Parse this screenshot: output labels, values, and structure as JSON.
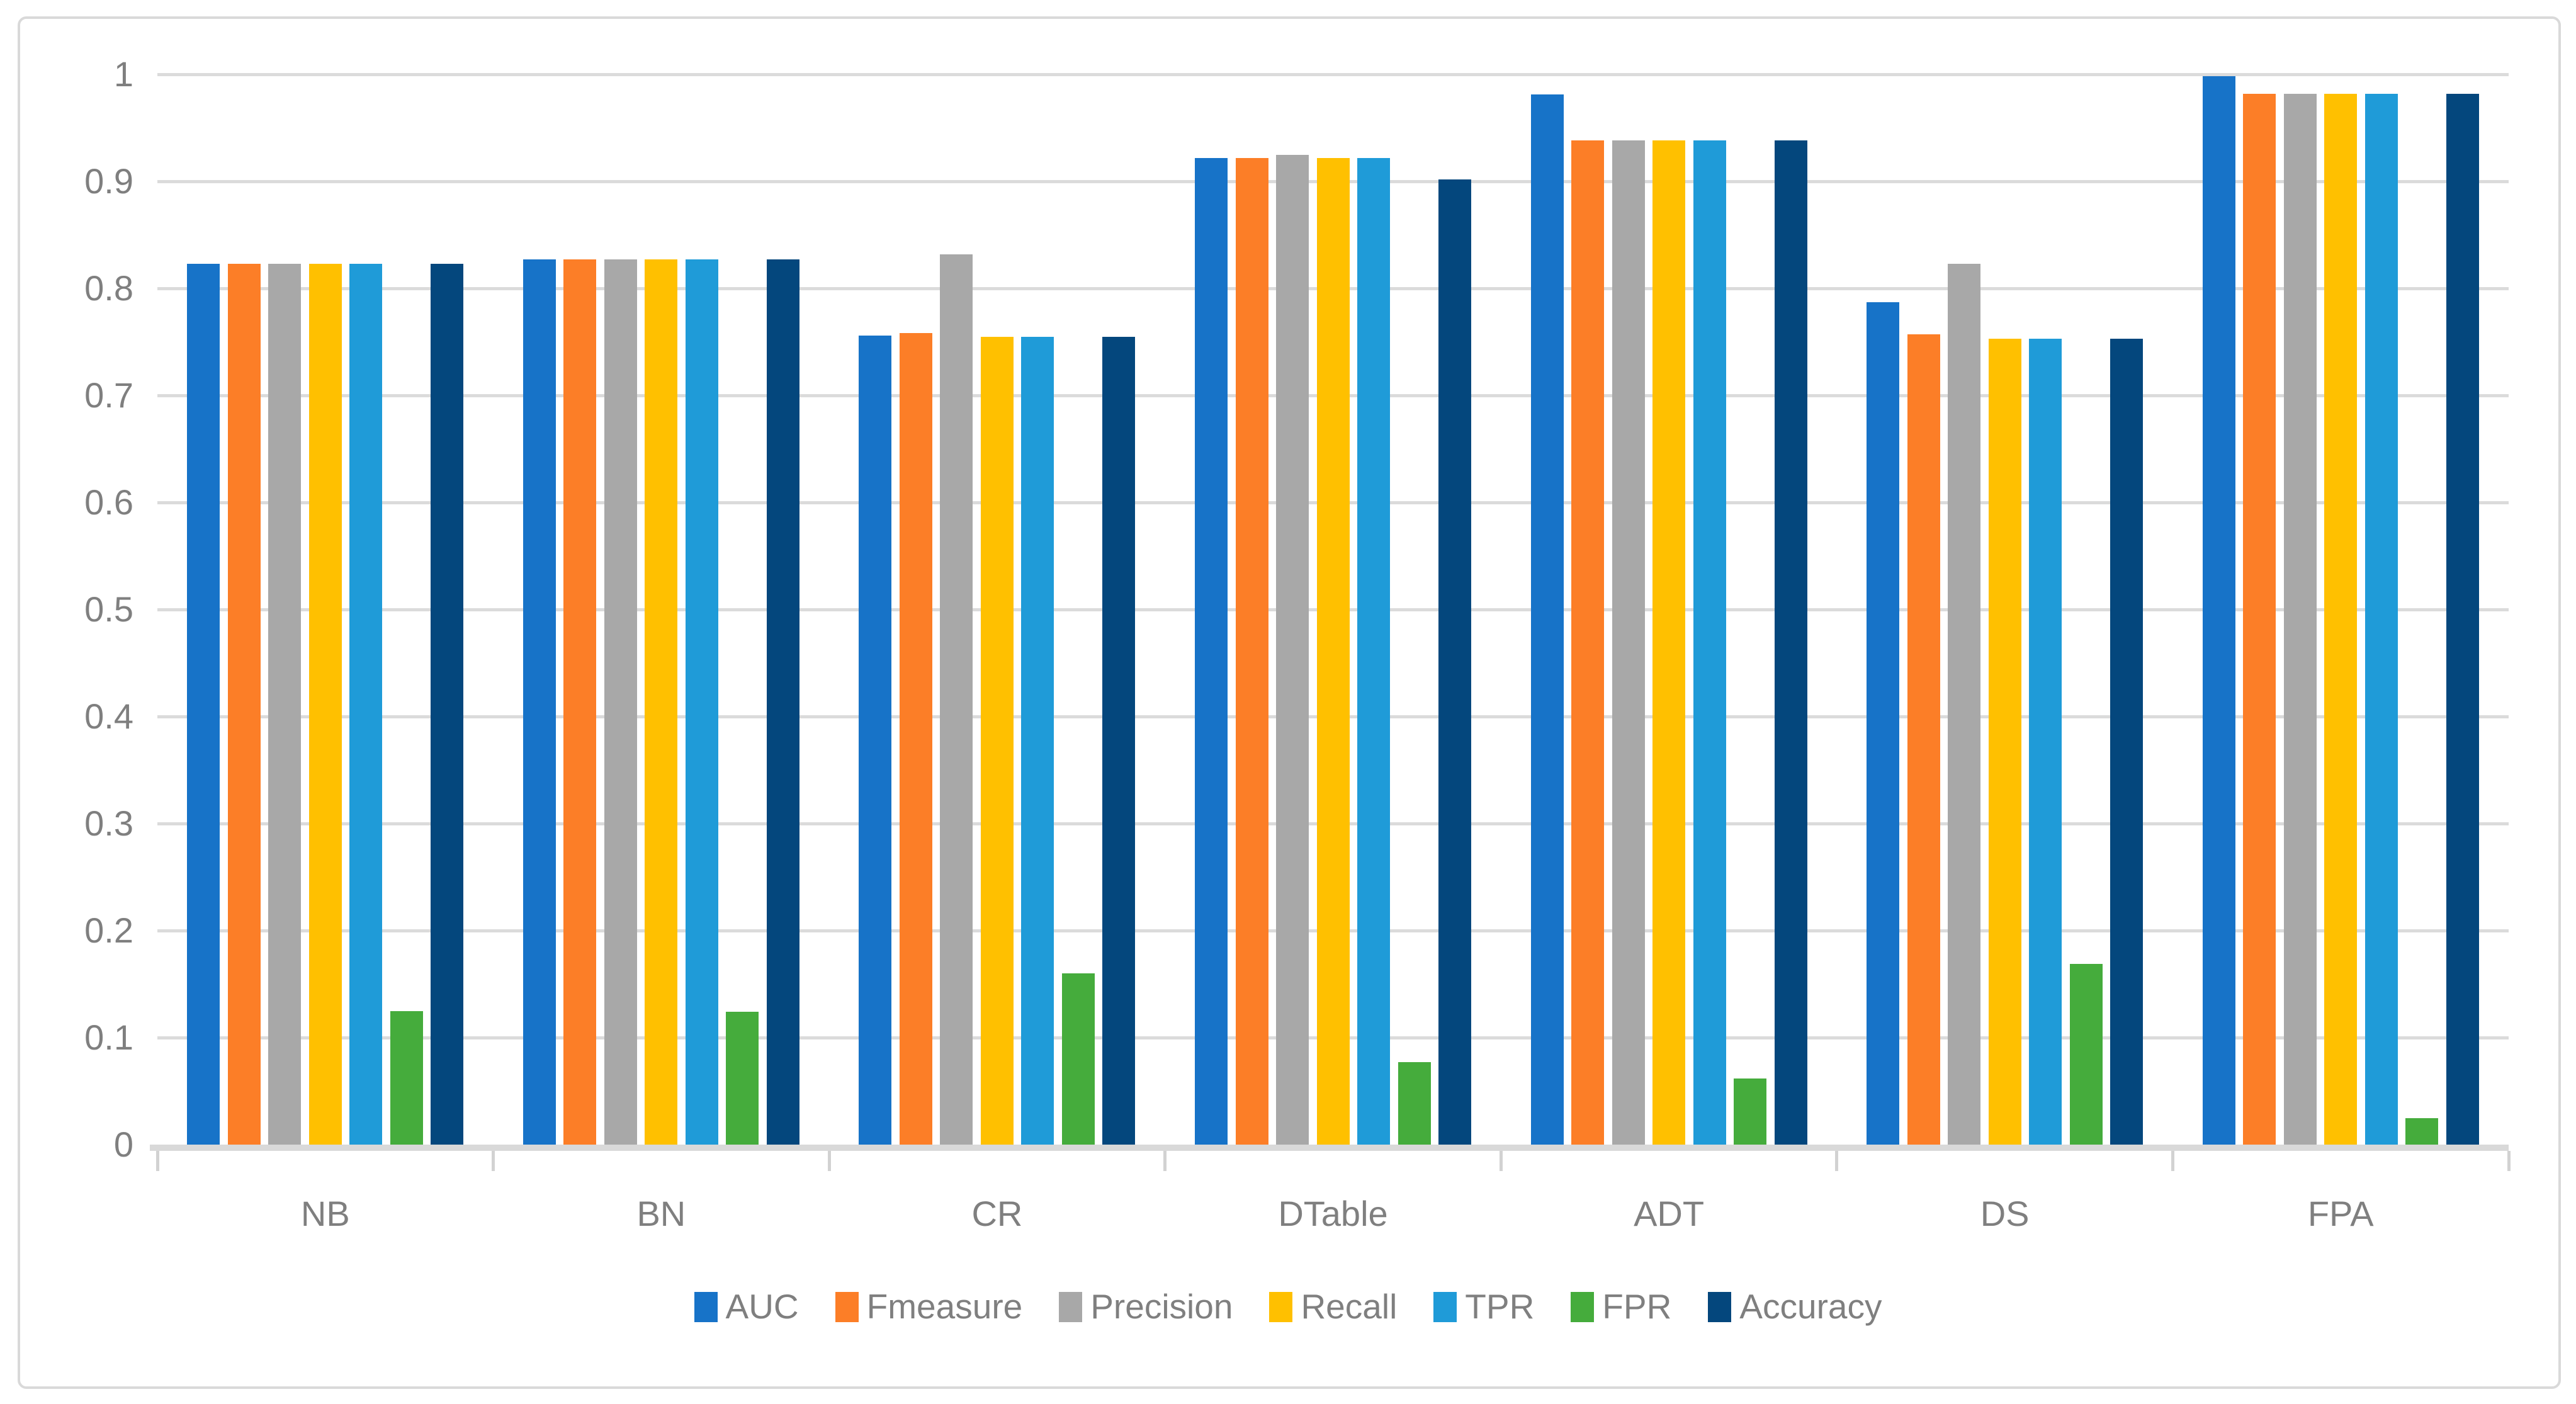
{
  "figure": {
    "background_color": "#FFFFFF",
    "frame_border_color": "#D9D9D9"
  },
  "chart_data": {
    "type": "bar",
    "title": "",
    "xlabel": "",
    "ylabel": "",
    "categories": [
      "NB",
      "BN",
      "CR",
      "DTable",
      "ADT",
      "DS",
      "FPA"
    ],
    "series": [
      {
        "name": "AUC",
        "color": "#1773C8",
        "values": [
          0.823,
          0.827,
          0.756,
          0.922,
          0.981,
          0.787,
          0.998
        ]
      },
      {
        "name": "Fmeasure",
        "color": "#FC7E27",
        "values": [
          0.823,
          0.827,
          0.758,
          0.922,
          0.938,
          0.757,
          0.982
        ]
      },
      {
        "name": "Precision",
        "color": "#A8A8A8",
        "values": [
          0.823,
          0.827,
          0.832,
          0.925,
          0.938,
          0.823,
          0.982
        ]
      },
      {
        "name": "Recall",
        "color": "#FFC000",
        "values": [
          0.823,
          0.827,
          0.755,
          0.922,
          0.938,
          0.753,
          0.982
        ]
      },
      {
        "name": "TPR",
        "color": "#1F9BD8",
        "values": [
          0.823,
          0.827,
          0.755,
          0.922,
          0.938,
          0.753,
          0.982
        ]
      },
      {
        "name": "FPR",
        "color": "#45AC3C",
        "values": [
          0.125,
          0.124,
          0.16,
          0.077,
          0.062,
          0.169,
          0.025
        ]
      },
      {
        "name": "Accuracy",
        "color": "#04477D",
        "values": [
          0.823,
          0.827,
          0.755,
          0.902,
          0.938,
          0.753,
          0.982
        ]
      }
    ],
    "ylim": [
      0,
      1
    ],
    "ytick_step": 0.1,
    "ytick_labels": [
      "0",
      "0.1",
      "0.2",
      "0.3",
      "0.4",
      "0.5",
      "0.6",
      "0.7",
      "0.8",
      "0.9",
      "1"
    ],
    "grid": "horizontal",
    "gridline_color": "#DBDBDB",
    "axis_line_color": "#D9D9D9",
    "axis_text_color": "#7F7F7F",
    "legend_position": "bottom"
  }
}
